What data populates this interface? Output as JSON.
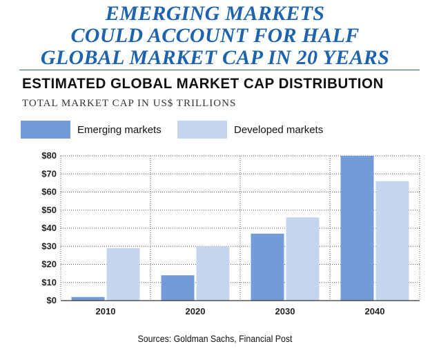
{
  "headline": {
    "line1": "EMERGING MARKETS",
    "line2": "COULD ACCOUNT FOR HALF",
    "line3": "GLOBAL MARKET CAP IN 20 YEARS"
  },
  "source": "Sources: Goldman Sachs, Financial Post",
  "chart_data": {
    "type": "bar",
    "title": "ESTIMATED GLOBAL MARKET CAP DISTRIBUTION",
    "subtitle": "TOTAL MARKET CAP IN US$ TRILLIONS",
    "categories": [
      "2010",
      "2020",
      "2030",
      "2040"
    ],
    "series": [
      {
        "name": "Emerging markets",
        "values": [
          2,
          14,
          37,
          80
        ],
        "color": "#739ad9"
      },
      {
        "name": "Developed markets",
        "values": [
          29,
          30,
          46,
          66
        ],
        "color": "#c6d5ee"
      }
    ],
    "yticks": [
      "$0",
      "$10",
      "$20",
      "$30",
      "$40",
      "$50",
      "$60",
      "$70",
      "$80"
    ],
    "ylim": [
      0,
      80
    ],
    "grid": "dotted horizontal",
    "legend_position": "top",
    "xlabel": "",
    "ylabel": ""
  }
}
